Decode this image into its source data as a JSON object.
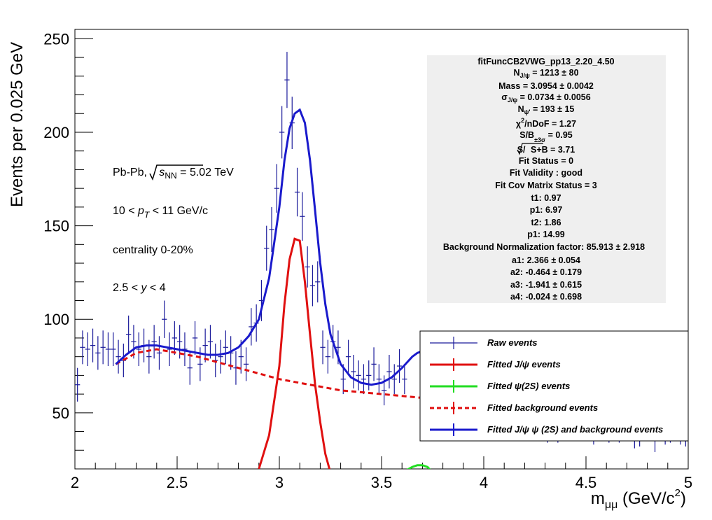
{
  "colors": {
    "raw": "#1a1a9a",
    "jpsi": "#e01010",
    "psi2s": "#22dd22",
    "background": "#e01010",
    "total": "#1a1acc",
    "stats_bg": "#efefef"
  },
  "axis_text": {
    "x_title": "m",
    "x_sub": "μμ",
    "x_unit": " (GeV/c",
    "x_sup": "2",
    "x_close": ")",
    "y_title": "Events per 0.025 GeV"
  },
  "annotations": {
    "collision_a": "Pb-Pb, ",
    "sqrt_s": "s",
    "sqrt_sub": "NN",
    "energy": " = 5.02 TeV",
    "pt_a": "10 < ",
    "pt_p": "p",
    "pt_sub": "T",
    "pt_b": " < 11 GeV/c",
    "centrality": "centrality 0-20%",
    "y_a": "2.5 < ",
    "y_var": "y",
    "y_b": " < 4"
  },
  "stats": {
    "title": "fitFuncCB2VWG_pp13_2.20_4.50",
    "n_jpsi_a": "N",
    "n_jpsi_sub": "J/ψ",
    "n_jpsi_b": " = 1213 ± 80",
    "mass": "Mass = 3.0954 ± 0.0042",
    "sigma_a": "σ",
    "sigma_sub": "J/ψ",
    "sigma_b": " = 0.0734 ± 0.0056",
    "n_psi_a": "N",
    "n_psi_sub": "ψ'",
    "n_psi_b": " = 193 ± 15",
    "chi_a": "χ",
    "chi_sup": "2",
    "chi_b": "/nDoF = 1.27",
    "sb_a": "S/B",
    "sb_sub": "±3σ",
    "sb_b": " = 0.95",
    "signif_a": "S/ ",
    "signif_root": "S+B",
    "signif_b": " = 3.71",
    "fit_status": "Fit Status = 0",
    "fit_validity": "Fit Validity : good",
    "fit_cov": "Fit Cov Matrix Status = 3",
    "t1": "t1: 0.97",
    "p1": "p1: 6.97",
    "t2": "t2: 1.86",
    "p1b": "p1: 14.99",
    "bkg_norm": "Background Normalization factor: 85.913 ± 2.918",
    "a1": "a1: 2.366  ± 0.054",
    "a2": "a2: -0.464 ± 0.179",
    "a3": "a3: -1.941 ± 0.615",
    "a4": "a4: -0.024 ± 0.698"
  },
  "chart_data": {
    "type": "line",
    "xlim": [
      2.0,
      5.0
    ],
    "ylim": [
      20,
      255
    ],
    "x_ticks": [
      2,
      2.5,
      3,
      3.5,
      4,
      4.5,
      5
    ],
    "x_tick_labels": [
      "2",
      "2.5",
      "3",
      "3.5",
      "4",
      "4.5",
      "5"
    ],
    "y_ticks": [
      50,
      100,
      150,
      200,
      250
    ],
    "y_tick_labels": [
      "50",
      "100",
      "150",
      "200",
      "250"
    ],
    "legend": {
      "placement": "bottom-right",
      "entries": [
        "Raw events",
        "Fitted J/ψ events",
        "Fitted  ψ(2S) events",
        "Fitted background events",
        "Fitted J/ψ  ψ (2S) and background events"
      ]
    },
    "raw_points": {
      "x": [
        2.0125,
        2.0375,
        2.0625,
        2.0875,
        2.1125,
        2.1375,
        2.1625,
        2.1875,
        2.2125,
        2.2375,
        2.2625,
        2.2875,
        2.3125,
        2.3375,
        2.3625,
        2.3875,
        2.4125,
        2.4375,
        2.4625,
        2.4875,
        2.5125,
        2.5375,
        2.5625,
        2.5875,
        2.6125,
        2.6375,
        2.6625,
        2.6875,
        2.7125,
        2.7375,
        2.7625,
        2.7875,
        2.8125,
        2.8375,
        2.8625,
        2.8875,
        2.9125,
        2.9375,
        2.9625,
        2.9875,
        3.0125,
        3.0375,
        3.0625,
        3.0875,
        3.1125,
        3.1375,
        3.1625,
        3.1875,
        3.2125,
        3.2375,
        3.2625,
        3.2875,
        3.3125,
        3.3375,
        3.3625,
        3.3875,
        3.4125,
        3.4375,
        3.4625,
        3.4875,
        3.5125,
        3.5375,
        3.5625,
        3.5875,
        3.6125,
        4.2125,
        4.2375,
        4.2625,
        4.2875,
        4.3125,
        4.3375,
        4.3625,
        4.3875,
        4.4125,
        4.4375,
        4.4625,
        4.4875,
        4.5125,
        4.5375,
        4.5625,
        4.5875,
        4.6125,
        4.6375,
        4.6625,
        4.6875,
        4.7125,
        4.7375,
        4.7625,
        4.7875,
        4.8125,
        4.8375,
        4.8625,
        4.8875,
        4.9125,
        4.9375,
        4.9625,
        4.9875
      ],
      "y": [
        65,
        85,
        84,
        86,
        82,
        85,
        84,
        84,
        80,
        78,
        92,
        88,
        84,
        86,
        80,
        88,
        82,
        100,
        84,
        90,
        88,
        84,
        74,
        90,
        76,
        86,
        88,
        78,
        80,
        85,
        82,
        74,
        80,
        76,
        96,
        98,
        110,
        138,
        148,
        170,
        200,
        228,
        205,
        168,
        155,
        128,
        118,
        120,
        85,
        80,
        88,
        85,
        68,
        80,
        72,
        70,
        68,
        70,
        76,
        68,
        62,
        72,
        68,
        75,
        68,
        55,
        48,
        48,
        42,
        40,
        44,
        40,
        45,
        44,
        44,
        43,
        41,
        42,
        39,
        41,
        45,
        40,
        43,
        40,
        43,
        42,
        37,
        38,
        41,
        42,
        35,
        41,
        39,
        40,
        42,
        39,
        38
      ],
      "err": [
        9,
        9,
        9,
        9,
        9,
        9,
        9,
        9,
        9,
        9,
        10,
        9,
        9,
        9,
        9,
        9,
        9,
        10,
        9,
        9,
        9,
        9,
        9,
        9,
        9,
        9,
        9,
        9,
        9,
        9,
        9,
        9,
        9,
        9,
        10,
        10,
        11,
        12,
        12,
        13,
        14,
        15,
        14,
        13,
        13,
        11,
        11,
        11,
        9,
        9,
        9,
        9,
        8,
        9,
        9,
        8,
        8,
        8,
        9,
        8,
        8,
        9,
        8,
        9,
        8,
        7,
        7,
        7,
        6,
        6,
        7,
        6,
        7,
        7,
        7,
        7,
        6,
        6,
        6,
        6,
        7,
        6,
        7,
        6,
        7,
        6,
        6,
        6,
        6,
        6,
        6,
        6,
        6,
        6,
        6,
        6,
        6
      ]
    },
    "total_fit": {
      "x": [
        2.2,
        2.25,
        2.3,
        2.35,
        2.4,
        2.45,
        2.5,
        2.55,
        2.6,
        2.65,
        2.7,
        2.75,
        2.8,
        2.85,
        2.9,
        2.95,
        3.0,
        3.025,
        3.05,
        3.075,
        3.1,
        3.125,
        3.15,
        3.175,
        3.2,
        3.225,
        3.25,
        3.3,
        3.35,
        3.4,
        3.45,
        3.5,
        3.55,
        3.6,
        3.65,
        3.675,
        3.7
      ],
      "y": [
        76,
        81,
        85,
        86,
        86,
        85,
        84,
        83,
        82,
        81,
        81,
        82,
        85,
        91,
        100,
        122,
        160,
        185,
        202,
        210,
        212,
        205,
        185,
        158,
        130,
        108,
        92,
        76,
        69,
        66,
        65,
        66,
        69,
        74,
        80,
        82,
        83
      ]
    },
    "jpsi_fit": {
      "x": [
        2.9,
        2.95,
        3.0,
        3.025,
        3.05,
        3.075,
        3.1,
        3.125,
        3.15,
        3.175,
        3.2,
        3.225,
        3.25
      ],
      "y": [
        20,
        38,
        75,
        108,
        132,
        143,
        142,
        120,
        92,
        65,
        45,
        28,
        18
      ]
    },
    "background_fit": {
      "x": [
        2.2,
        2.3,
        2.4,
        2.5,
        2.6,
        2.7,
        2.8,
        2.9,
        3.0,
        3.1,
        3.2,
        3.3,
        3.4,
        3.5,
        3.6,
        3.7
      ],
      "y": [
        76,
        82,
        84,
        82,
        80,
        77,
        74,
        71,
        68,
        66,
        64,
        62,
        61,
        60,
        59,
        58
      ]
    },
    "psi2s_fit": {
      "x": [
        3.6,
        3.65,
        3.675,
        3.7,
        3.725,
        3.75
      ],
      "y": [
        18,
        21,
        22,
        22,
        21,
        18
      ]
    }
  }
}
